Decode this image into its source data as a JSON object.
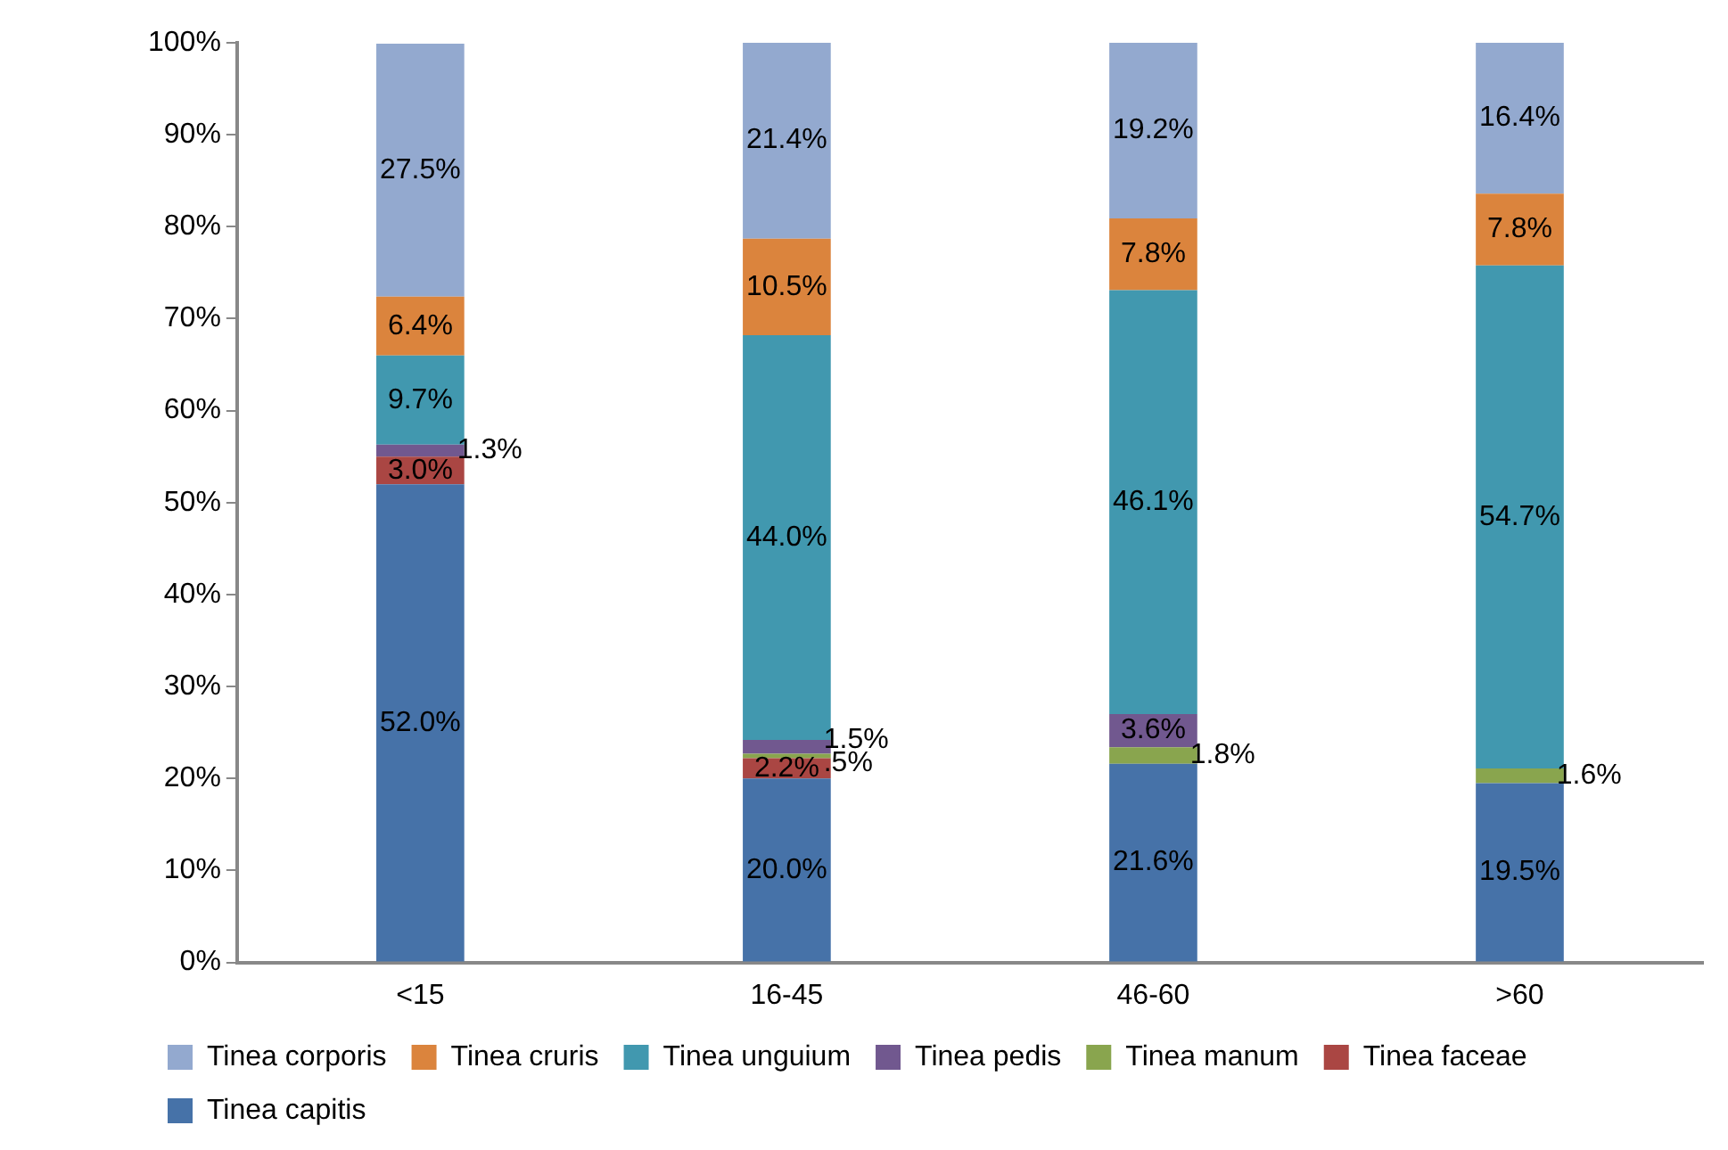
{
  "chart_data": {
    "type": "bar",
    "stacked": true,
    "categories": [
      "<15",
      "16-45",
      "46-60",
      ">60"
    ],
    "ylim": [
      0,
      100
    ],
    "yticks": [
      {
        "value": 0,
        "label": "0%"
      },
      {
        "value": 10,
        "label": "10%"
      },
      {
        "value": 20,
        "label": "20%"
      },
      {
        "value": 30,
        "label": "30%"
      },
      {
        "value": 40,
        "label": "40%"
      },
      {
        "value": 50,
        "label": "50%"
      },
      {
        "value": 60,
        "label": "60%"
      },
      {
        "value": 70,
        "label": "70%"
      },
      {
        "value": 80,
        "label": "80%"
      },
      {
        "value": 90,
        "label": "90%"
      },
      {
        "value": 100,
        "label": "100%"
      }
    ],
    "grid": false,
    "legend": "bottom",
    "series": [
      {
        "name": "Tinea capitis",
        "color": "#4672a8",
        "values": [
          52.0,
          20.0,
          21.6,
          19.5
        ],
        "value_labels": [
          "52.0%",
          "20.0%",
          "21.6%",
          "19.5%"
        ]
      },
      {
        "name": "Tinea faceae",
        "color": "#aa4643",
        "values": [
          3.0,
          2.2,
          null,
          null
        ],
        "value_labels": [
          "3.0%",
          "2.2%",
          null,
          null
        ]
      },
      {
        "name": "Tinea manum",
        "color": "#89a54e",
        "values": [
          null,
          0.5,
          1.8,
          1.6
        ],
        "value_labels": [
          null,
          ".5%",
          "1.8%",
          "1.6%"
        ]
      },
      {
        "name": "Tinea pedis",
        "color": "#71588f",
        "values": [
          1.3,
          1.5,
          3.6,
          null
        ],
        "value_labels": [
          "1.3%",
          "1.5%",
          "3.6%",
          null
        ]
      },
      {
        "name": "Tinea unguium",
        "color": "#4198af",
        "values": [
          9.7,
          44.0,
          46.1,
          54.7
        ],
        "value_labels": [
          "9.7%",
          "44.0%",
          "46.1%",
          "54.7%"
        ]
      },
      {
        "name": "Tinea cruris",
        "color": "#db843d",
        "values": [
          6.4,
          10.5,
          7.8,
          7.8
        ],
        "value_labels": [
          "6.4%",
          "10.5%",
          "7.8%",
          "7.8%"
        ]
      },
      {
        "name": "Tinea corporis",
        "color": "#93a9cf",
        "values": [
          27.5,
          21.4,
          19.2,
          16.4
        ],
        "value_labels": [
          "27.5%",
          "21.4%",
          "19.2%",
          "16.4%"
        ]
      }
    ]
  }
}
